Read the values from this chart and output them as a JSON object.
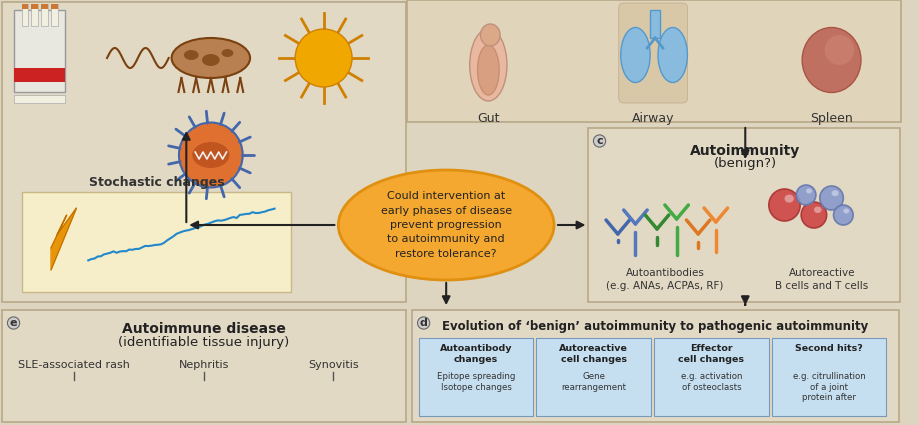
{
  "bg_color": "#ddd5c0",
  "panel_bg": "#e2d9c5",
  "panel_border": "#b8a888",
  "graph_bg": "#f5eec8",
  "blue_cell_bg": "#c5dff0",
  "orange_ellipse": "#f5a830",
  "orange_ellipse_edge": "#e09010",
  "arrow_color": "#222222",
  "center_text": "Could intervention at\nearly phases of disease\nprevent progression\nto autoimmunity and\nrestore tolerance?",
  "top_labels": [
    "Gut",
    "Airway",
    "Spleen"
  ],
  "stochastic_label": "Stochastic changes",
  "panel_c_title1": "Autoimmunity",
  "panel_c_title2": "(benign?)",
  "panel_c_label": "c",
  "panel_c_label1": "Autoantibodies\n(e.g. ANAs, ACPAs, RF)",
  "panel_c_label2": "Autoreactive\nB cells and T cells",
  "panel_d_label": "d",
  "panel_d_title": "Evolution of ‘benign’ autoimmunity to pathogenic autoimmunity",
  "panel_d_cols": [
    "Autoantibody\nchanges",
    "Autoreactive\ncell changes",
    "Effector\ncell changes",
    "Second hits?"
  ],
  "panel_d_rows": [
    "Epitope spreading\nIsotope changes",
    "Gene\nrearrangement",
    "e.g. activation\nof osteoclasts",
    "e.g. citrullination\nof a joint\nprotein after"
  ],
  "panel_e_label": "e",
  "panel_e_title1": "Autoimmune disease",
  "panel_e_title2": "(identifiable tissue injury)",
  "panel_e_items": [
    "SLE-associated rash",
    "Synovitis",
    "Nephritis"
  ]
}
